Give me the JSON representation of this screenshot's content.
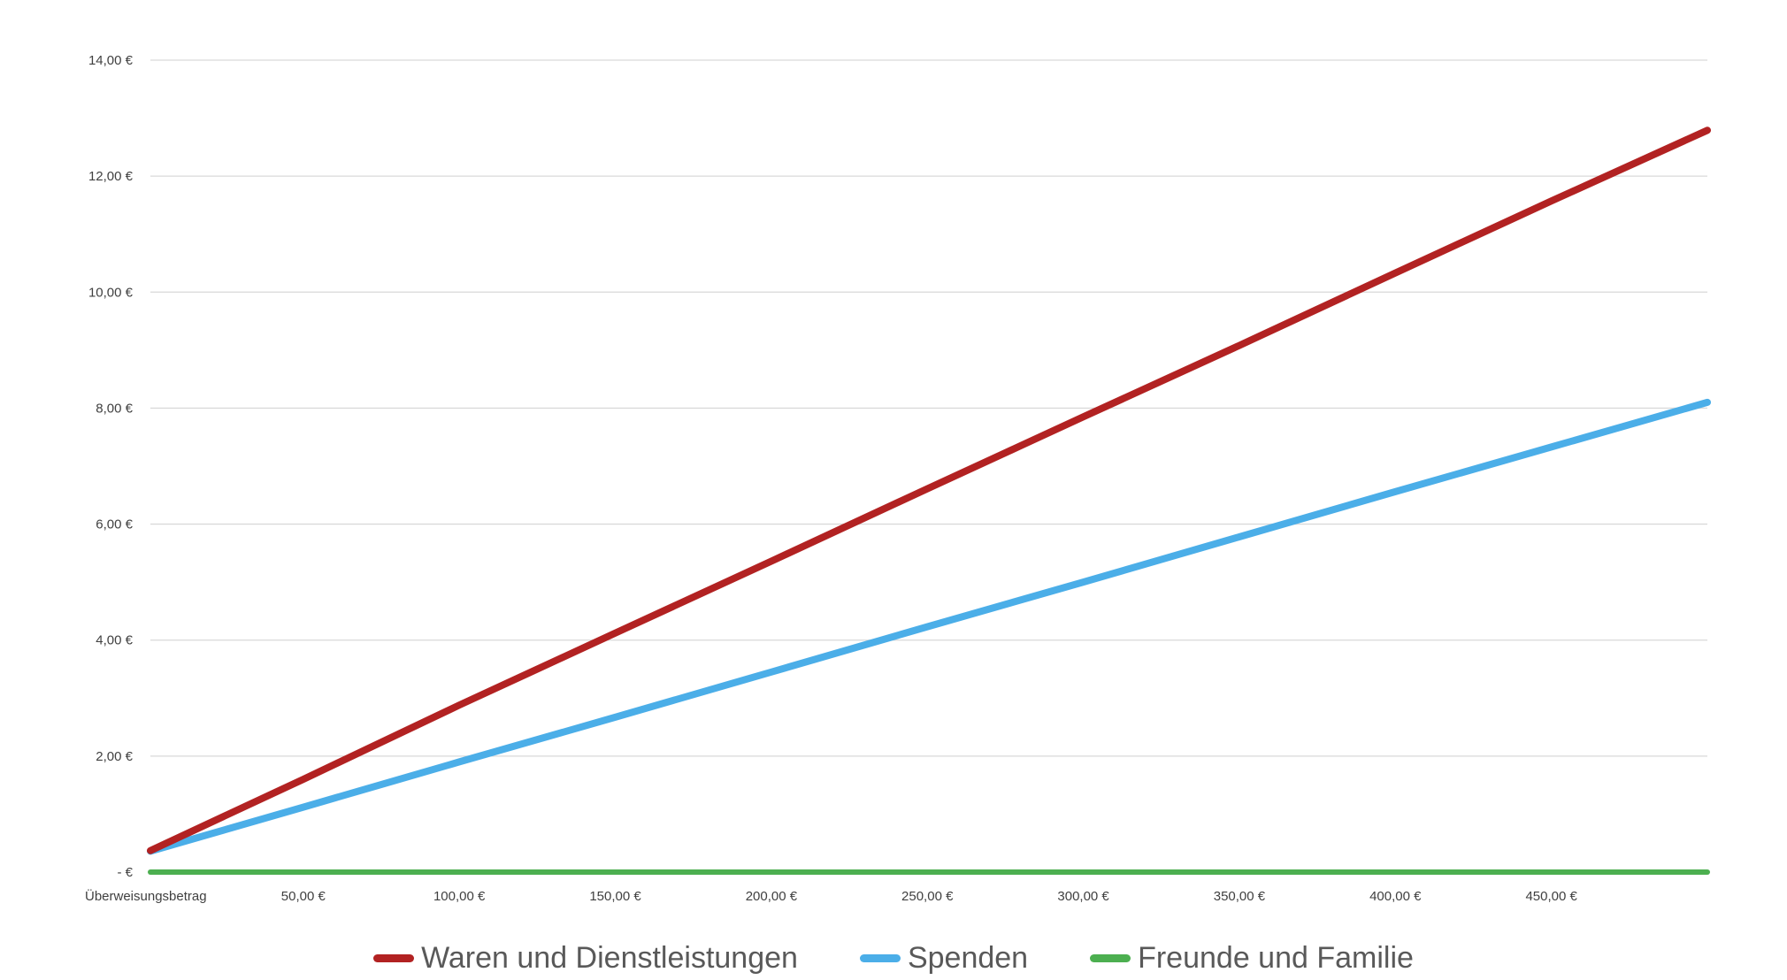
{
  "chart_data": {
    "type": "line",
    "xlabel": "",
    "ylabel": "",
    "x_label_left": "Überweisungsbetrag",
    "x": [
      1,
      50,
      100,
      150,
      200,
      250,
      300,
      350,
      400,
      450,
      500
    ],
    "x_ticks": [
      50,
      100,
      150,
      200,
      250,
      300,
      350,
      400,
      450
    ],
    "x_tick_labels": [
      "50,00 €",
      "100,00 €",
      "150,00 €",
      "200,00 €",
      "250,00 €",
      "300,00 €",
      "350,00 €",
      "400,00 €",
      "450,00 €"
    ],
    "xlim": [
      1,
      500
    ],
    "y_ticks": [
      0,
      2,
      4,
      6,
      8,
      10,
      12,
      14
    ],
    "y_tick_labels": [
      "-   €",
      "2,00 €",
      "4,00 €",
      "6,00 €",
      "8,00 €",
      "10,00 €",
      "12,00 €",
      "14,00 €"
    ],
    "ylim": [
      0,
      14
    ],
    "grid": "horizontal",
    "legend_position": "bottom",
    "series": [
      {
        "name": "Waren und Dienstleistungen",
        "color": "#b22222",
        "values": [
          0.37,
          1.6,
          2.88,
          4.12,
          5.36,
          6.61,
          7.85,
          9.08,
          10.33,
          11.57,
          12.79
        ]
      },
      {
        "name": "Spenden",
        "color": "#4baee8",
        "values": [
          0.36,
          1.12,
          1.9,
          2.67,
          3.45,
          4.23,
          5.0,
          5.78,
          6.56,
          7.33,
          8.1
        ]
      },
      {
        "name": "Freunde und Familie",
        "color": "#4caf50",
        "values": [
          0,
          0,
          0,
          0,
          0,
          0,
          0,
          0,
          0,
          0,
          0
        ]
      }
    ]
  }
}
